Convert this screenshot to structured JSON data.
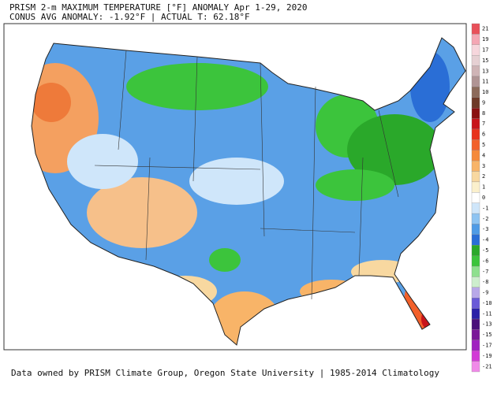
{
  "title": "PRISM 2-m MAXIMUM TEMPERATURE [°F] ANOMALY Apr 1-29, 2020",
  "subtitle": "CONUS AVG ANOMALY: -1.92°F | ACTUAL T: 62.18°F",
  "footer": "Data owned by PRISM Climate Group, Oregon State University | 1985-2014 Climatology",
  "colorbar": {
    "ticks": [
      21,
      19,
      17,
      15,
      13,
      11,
      10,
      9,
      8,
      7,
      6,
      5,
      4,
      3,
      2,
      1,
      0,
      -1,
      -2,
      -3,
      -4,
      -5,
      -6,
      -7,
      -8,
      -9,
      -10,
      -11,
      -13,
      -15,
      -17,
      -19,
      -21
    ],
    "colors": [
      "#e8505a",
      "#f4a7b4",
      "#f6d6dc",
      "#e6d0d3",
      "#cfb4b6",
      "#b09494",
      "#8c6a5a",
      "#6e3a28",
      "#8a1010",
      "#c8141a",
      "#e8331c",
      "#f2602a",
      "#f58a3a",
      "#f8b468",
      "#f8d8a0",
      "#fbf0cc",
      "#ffffff",
      "#cfe6fa",
      "#8ec4f2",
      "#4f9be6",
      "#2a6ed6",
      "#2aa82a",
      "#3cc43c",
      "#8ee08e",
      "#cdeecd",
      "#b8a8e8",
      "#6a5ad8",
      "#2a20a8",
      "#4a107a",
      "#7a1898",
      "#a020c0",
      "#d23ad6",
      "#f08ae8"
    ]
  }
}
